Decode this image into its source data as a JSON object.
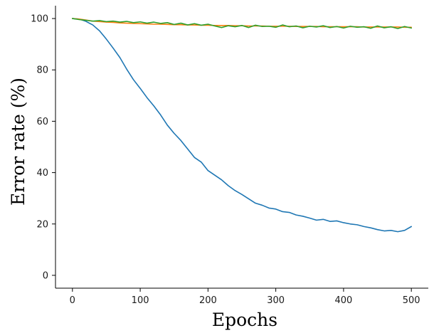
{
  "chart_data": {
    "type": "line",
    "title": "",
    "xlabel": "Epochs",
    "ylabel": "Error rate (%)",
    "xlim": [
      -25,
      525
    ],
    "ylim": [
      -5,
      105
    ],
    "xticks": [
      0,
      100,
      200,
      300,
      400,
      500
    ],
    "yticks": [
      0,
      20,
      40,
      60,
      80,
      100
    ],
    "grid": false,
    "legend": "none",
    "series": [
      {
        "color": "#1f77b4",
        "x": [
          0,
          10,
          20,
          30,
          40,
          50,
          60,
          70,
          80,
          90,
          100,
          110,
          120,
          130,
          140,
          150,
          160,
          170,
          180,
          190,
          200,
          210,
          220,
          230,
          240,
          250,
          260,
          270,
          280,
          290,
          300,
          310,
          320,
          330,
          340,
          350,
          360,
          370,
          380,
          390,
          400,
          410,
          420,
          430,
          440,
          450,
          460,
          470,
          480,
          490,
          500
        ],
        "values": [
          100,
          99.8,
          98.9,
          97.5,
          95.2,
          92,
          88.5,
          84.8,
          80.3,
          76.2,
          72.8,
          69.2,
          66,
          62.5,
          58.5,
          55.3,
          52.5,
          49.2,
          45.9,
          44.1,
          40.8,
          39,
          37.2,
          34.9,
          33,
          31.5,
          29.8,
          28.1,
          27.3,
          26.2,
          25.8,
          24.8,
          24.5,
          23.5,
          23,
          22.3,
          21.5,
          21.8,
          21,
          21.2,
          20.5,
          20,
          19.7,
          19,
          18.5,
          17.8,
          17.3,
          17.5,
          17,
          17.5,
          19
        ]
      },
      {
        "color": "#ff7f0e",
        "x": [
          0,
          10,
          20,
          30,
          40,
          50,
          60,
          70,
          80,
          90,
          100,
          110,
          120,
          130,
          140,
          150,
          160,
          170,
          180,
          190,
          200,
          210,
          220,
          230,
          240,
          250,
          260,
          270,
          280,
          290,
          300,
          310,
          320,
          330,
          340,
          350,
          360,
          370,
          380,
          390,
          400,
          410,
          420,
          430,
          440,
          450,
          460,
          470,
          480,
          490,
          500
        ],
        "values": [
          100,
          99.8,
          99.4,
          99,
          98.8,
          98.6,
          98.5,
          98.3,
          98.2,
          98.1,
          98,
          97.9,
          97.8,
          97.8,
          97.7,
          97.6,
          97.6,
          97.5,
          97.5,
          97.4,
          97.4,
          97.3,
          97.3,
          97.3,
          97.2,
          97.2,
          97.1,
          97.1,
          97.1,
          97,
          97,
          97,
          97,
          96.9,
          96.9,
          96.9,
          96.9,
          96.8,
          96.8,
          96.8,
          96.8,
          96.8,
          96.8,
          96.7,
          96.7,
          96.7,
          96.7,
          96.7,
          96.7,
          96.6,
          96.6
        ]
      },
      {
        "color": "#2ca02c",
        "x": [
          0,
          10,
          20,
          30,
          40,
          50,
          60,
          70,
          80,
          90,
          100,
          110,
          120,
          130,
          140,
          150,
          160,
          170,
          180,
          190,
          200,
          210,
          220,
          230,
          240,
          250,
          260,
          270,
          280,
          290,
          300,
          310,
          320,
          330,
          340,
          350,
          360,
          370,
          380,
          390,
          400,
          410,
          420,
          430,
          440,
          450,
          460,
          470,
          480,
          490,
          500
        ],
        "values": [
          100,
          99.6,
          99.3,
          99,
          99.2,
          98.8,
          99,
          98.6,
          98.9,
          98.4,
          98.7,
          98.2,
          98.6,
          98.1,
          98.4,
          97.7,
          98.2,
          97.5,
          98,
          97.4,
          97.8,
          97.1,
          96.5,
          97.2,
          96.8,
          97.3,
          96.5,
          97.4,
          96.9,
          97,
          96.6,
          97.5,
          96.8,
          97.1,
          96.4,
          97,
          96.7,
          97.2,
          96.5,
          96.9,
          96.3,
          97,
          96.6,
          96.8,
          96.2,
          97.1,
          96.4,
          96.8,
          96.1,
          96.9,
          96.3
        ]
      }
    ]
  }
}
